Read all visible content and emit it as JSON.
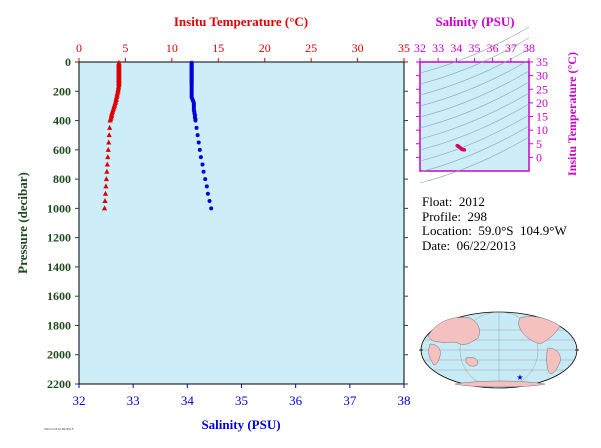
{
  "colors": {
    "temperature": "#dd0000",
    "salinity": "#0000dd",
    "ts_axis": "#cc00cc",
    "pressure_axis": "#1f4a1f",
    "plot_bg": "#cdeef8",
    "land": "#f5c0c0",
    "ocean": "#c8eaf5"
  },
  "info": {
    "float": "Float:  2012",
    "profile": "Profile:  298",
    "location": "Location:  59.0°S  104.9°W",
    "date": "Date:  06/22/2013"
  },
  "footer_text": "ARGO DATA PROFILE",
  "chart_data": [
    {
      "type": "scatter",
      "title": "",
      "ylabel": "Pressure (decibar)",
      "ylim": [
        0,
        2200
      ],
      "y_inverted": true,
      "yticks": [
        0,
        200,
        400,
        600,
        800,
        1000,
        1200,
        1400,
        1600,
        1800,
        2000,
        2200
      ],
      "top_axis": {
        "label": "Insitu Temperature (°C)",
        "range": [
          0,
          35
        ],
        "ticks": [
          0,
          5,
          10,
          15,
          20,
          25,
          30,
          35
        ]
      },
      "bottom_axis": {
        "label": "Salinity (PSU)",
        "range": [
          32,
          38
        ],
        "ticks": [
          32,
          33,
          34,
          35,
          36,
          37,
          38
        ]
      },
      "series": [
        {
          "marker": "triangle",
          "axis": "temperature",
          "points": [
            [
              4.3,
              5
            ],
            [
              4.3,
              10
            ],
            [
              4.3,
              15
            ],
            [
              4.3,
              20
            ],
            [
              4.3,
              25
            ],
            [
              4.3,
              30
            ],
            [
              4.3,
              35
            ],
            [
              4.3,
              40
            ],
            [
              4.3,
              45
            ],
            [
              4.3,
              50
            ],
            [
              4.3,
              55
            ],
            [
              4.3,
              60
            ],
            [
              4.3,
              65
            ],
            [
              4.3,
              70
            ],
            [
              4.3,
              75
            ],
            [
              4.3,
              80
            ],
            [
              4.3,
              85
            ],
            [
              4.3,
              90
            ],
            [
              4.3,
              95
            ],
            [
              4.3,
              100
            ],
            [
              4.3,
              105
            ],
            [
              4.3,
              110
            ],
            [
              4.3,
              115
            ],
            [
              4.3,
              120
            ],
            [
              4.3,
              125
            ],
            [
              4.3,
              130
            ],
            [
              4.3,
              135
            ],
            [
              4.3,
              140
            ],
            [
              4.3,
              145
            ],
            [
              4.3,
              150
            ],
            [
              4.3,
              160
            ],
            [
              4.25,
              170
            ],
            [
              4.25,
              180
            ],
            [
              4.2,
              190
            ],
            [
              4.2,
              200
            ],
            [
              4.15,
              210
            ],
            [
              4.1,
              220
            ],
            [
              4.1,
              230
            ],
            [
              4.05,
              240
            ],
            [
              4.0,
              250
            ],
            [
              4.0,
              260
            ],
            [
              3.95,
              270
            ],
            [
              3.9,
              280
            ],
            [
              3.85,
              290
            ],
            [
              3.8,
              300
            ],
            [
              3.75,
              310
            ],
            [
              3.7,
              320
            ],
            [
              3.65,
              330
            ],
            [
              3.6,
              340
            ],
            [
              3.55,
              350
            ],
            [
              3.5,
              360
            ],
            [
              3.5,
              370
            ],
            [
              3.45,
              380
            ],
            [
              3.4,
              390
            ],
            [
              3.35,
              400
            ],
            [
              3.3,
              450
            ],
            [
              3.25,
              500
            ],
            [
              3.2,
              550
            ],
            [
              3.15,
              600
            ],
            [
              3.1,
              650
            ],
            [
              3.05,
              700
            ],
            [
              3.0,
              750
            ],
            [
              2.95,
              800
            ],
            [
              2.9,
              850
            ],
            [
              2.85,
              900
            ],
            [
              2.8,
              950
            ],
            [
              2.75,
              1000
            ]
          ]
        },
        {
          "marker": "circle",
          "axis": "salinity",
          "points": [
            [
              34.08,
              5
            ],
            [
              34.08,
              10
            ],
            [
              34.08,
              15
            ],
            [
              34.08,
              20
            ],
            [
              34.08,
              25
            ],
            [
              34.08,
              30
            ],
            [
              34.08,
              35
            ],
            [
              34.08,
              40
            ],
            [
              34.08,
              45
            ],
            [
              34.08,
              50
            ],
            [
              34.08,
              55
            ],
            [
              34.08,
              60
            ],
            [
              34.08,
              65
            ],
            [
              34.08,
              70
            ],
            [
              34.08,
              75
            ],
            [
              34.08,
              80
            ],
            [
              34.08,
              85
            ],
            [
              34.08,
              90
            ],
            [
              34.08,
              95
            ],
            [
              34.08,
              100
            ],
            [
              34.08,
              105
            ],
            [
              34.08,
              110
            ],
            [
              34.08,
              115
            ],
            [
              34.08,
              120
            ],
            [
              34.08,
              125
            ],
            [
              34.08,
              130
            ],
            [
              34.08,
              135
            ],
            [
              34.08,
              140
            ],
            [
              34.08,
              145
            ],
            [
              34.08,
              150
            ],
            [
              34.08,
              160
            ],
            [
              34.08,
              170
            ],
            [
              34.08,
              180
            ],
            [
              34.08,
              190
            ],
            [
              34.08,
              200
            ],
            [
              34.08,
              210
            ],
            [
              34.08,
              220
            ],
            [
              34.08,
              230
            ],
            [
              34.08,
              240
            ],
            [
              34.09,
              250
            ],
            [
              34.1,
              260
            ],
            [
              34.11,
              270
            ],
            [
              34.12,
              280
            ],
            [
              34.12,
              290
            ],
            [
              34.12,
              300
            ],
            [
              34.12,
              310
            ],
            [
              34.12,
              320
            ],
            [
              34.12,
              330
            ],
            [
              34.13,
              340
            ],
            [
              34.13,
              350
            ],
            [
              34.14,
              360
            ],
            [
              34.14,
              370
            ],
            [
              34.14,
              380
            ],
            [
              34.15,
              390
            ],
            [
              34.15,
              400
            ],
            [
              34.17,
              450
            ],
            [
              34.19,
              500
            ],
            [
              34.21,
              550
            ],
            [
              34.23,
              600
            ],
            [
              34.25,
              650
            ],
            [
              34.28,
              700
            ],
            [
              34.3,
              750
            ],
            [
              34.33,
              800
            ],
            [
              34.36,
              850
            ],
            [
              34.38,
              900
            ],
            [
              34.41,
              950
            ],
            [
              34.44,
              1000
            ]
          ]
        }
      ]
    },
    {
      "type": "scatter",
      "title": "",
      "top_axis": {
        "label": "Salinity (PSU)",
        "range": [
          32,
          38
        ],
        "ticks": [
          32,
          33,
          34,
          35,
          36,
          37,
          38
        ]
      },
      "right_axis": {
        "label": "Insitu Temperature (°C)",
        "range": [
          -5,
          35
        ],
        "ticks": [
          0,
          5,
          10,
          15,
          20,
          25,
          30,
          35
        ]
      },
      "points": [
        [
          34.05,
          4.3
        ],
        [
          34.1,
          4.1
        ],
        [
          34.15,
          3.9
        ],
        [
          34.2,
          3.6
        ],
        [
          34.25,
          3.3
        ],
        [
          34.3,
          3.0
        ],
        [
          34.35,
          2.9
        ],
        [
          34.4,
          2.8
        ],
        [
          34.44,
          2.75
        ]
      ]
    },
    {
      "type": "map",
      "float_location": {
        "lat": -59.0,
        "lon": -104.9
      }
    }
  ]
}
